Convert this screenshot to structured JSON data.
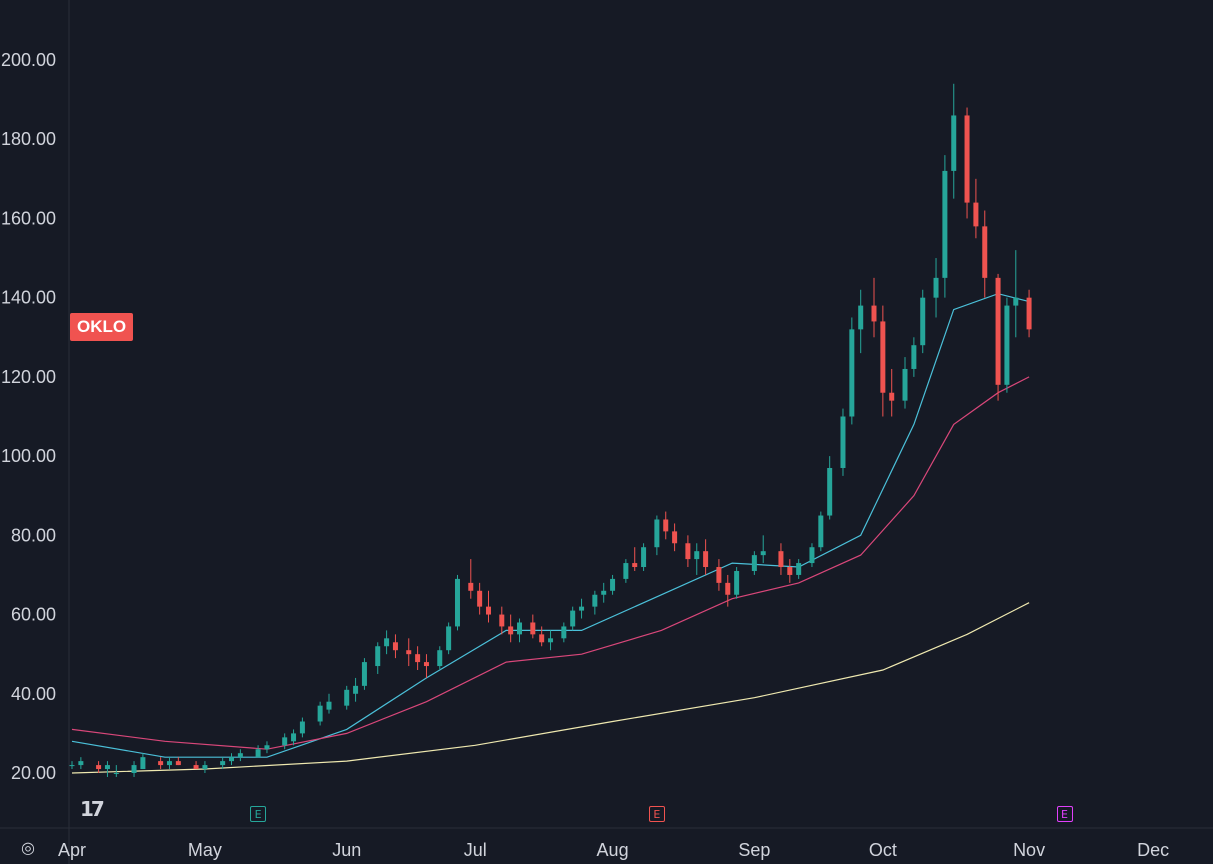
{
  "symbol": {
    "label": "OKLO",
    "color": "#f05350"
  },
  "logo": "17",
  "events": [
    {
      "label": "E",
      "kind": "earnings-positive",
      "date": "2025-05-13"
    },
    {
      "label": "E",
      "kind": "earnings-negative",
      "date": "2025-08-11"
    },
    {
      "label": "E",
      "kind": "earnings-upcoming",
      "date": "2025-11-11"
    }
  ],
  "chart_data": {
    "type": "candlestick",
    "y_axis": {
      "ticks": [
        "20.00",
        "40.00",
        "60.00",
        "80.00",
        "100.00",
        "120.00",
        "140.00",
        "160.00",
        "180.00",
        "200.00"
      ],
      "range": [
        16,
        210
      ]
    },
    "x_axis": {
      "ticks": [
        "Apr",
        "May",
        "Jun",
        "Jul",
        "Aug",
        "Sep",
        "Oct",
        "Nov",
        "Dec"
      ],
      "tick_dates": [
        "2025-04-01",
        "2025-05-01",
        "2025-06-02",
        "2025-07-01",
        "2025-08-01",
        "2025-09-02",
        "2025-10-01",
        "2025-11-03",
        "2025-12-01"
      ],
      "range": [
        "2025-04-01",
        "2025-12-03"
      ]
    },
    "colors": {
      "up": "#26a69a",
      "down": "#ef5350",
      "ema_fast": "#4bc0d9",
      "ema_slow": "#d9477a",
      "ma_long": "#efe9b0",
      "grid": "#2a2e39"
    },
    "candles": [
      [
        "2025-04-01",
        22,
        23,
        21,
        22
      ],
      [
        "2025-04-03",
        22,
        24,
        21,
        23
      ],
      [
        "2025-04-07",
        22,
        23,
        20,
        21
      ],
      [
        "2025-04-09",
        21,
        23,
        19,
        22
      ],
      [
        "2025-04-11",
        20,
        22,
        19,
        20
      ],
      [
        "2025-04-15",
        20,
        23,
        19,
        22
      ],
      [
        "2025-04-17",
        21,
        25,
        21,
        24
      ],
      [
        "2025-04-21",
        23,
        24,
        21,
        22
      ],
      [
        "2025-04-23",
        22,
        24,
        21,
        23
      ],
      [
        "2025-04-25",
        23,
        24,
        22,
        22
      ],
      [
        "2025-04-29",
        22,
        23,
        21,
        21
      ],
      [
        "2025-05-01",
        21,
        23,
        20,
        22
      ],
      [
        "2025-05-05",
        22,
        24,
        21,
        23
      ],
      [
        "2025-05-07",
        23,
        25,
        22,
        24
      ],
      [
        "2025-05-09",
        24,
        26,
        23,
        25
      ],
      [
        "2025-05-13",
        24,
        27,
        24,
        26
      ],
      [
        "2025-05-15",
        26,
        28,
        25,
        27
      ],
      [
        "2025-05-19",
        27,
        30,
        26,
        29
      ],
      [
        "2025-05-21",
        28,
        31,
        27,
        30
      ],
      [
        "2025-05-23",
        30,
        34,
        29,
        33
      ],
      [
        "2025-05-27",
        33,
        38,
        32,
        37
      ],
      [
        "2025-05-29",
        36,
        40,
        35,
        38
      ],
      [
        "2025-06-02",
        37,
        42,
        36,
        41
      ],
      [
        "2025-06-04",
        40,
        44,
        38,
        42
      ],
      [
        "2025-06-06",
        42,
        49,
        41,
        48
      ],
      [
        "2025-06-09",
        47,
        53,
        45,
        52
      ],
      [
        "2025-06-11",
        52,
        56,
        50,
        54
      ],
      [
        "2025-06-13",
        53,
        55,
        49,
        51
      ],
      [
        "2025-06-16",
        51,
        54,
        47,
        50
      ],
      [
        "2025-06-18",
        50,
        52,
        46,
        48
      ],
      [
        "2025-06-20",
        48,
        50,
        44,
        47
      ],
      [
        "2025-06-23",
        47,
        52,
        46,
        51
      ],
      [
        "2025-06-25",
        51,
        58,
        50,
        57
      ],
      [
        "2025-06-27",
        57,
        70,
        56,
        69
      ],
      [
        "2025-06-30",
        68,
        74,
        64,
        66
      ],
      [
        "2025-07-02",
        66,
        68,
        60,
        62
      ],
      [
        "2025-07-04",
        62,
        66,
        58,
        60
      ],
      [
        "2025-07-07",
        60,
        62,
        55,
        57
      ],
      [
        "2025-07-09",
        57,
        60,
        53,
        55
      ],
      [
        "2025-07-11",
        55,
        59,
        53,
        58
      ],
      [
        "2025-07-14",
        58,
        60,
        54,
        55
      ],
      [
        "2025-07-16",
        55,
        57,
        52,
        53
      ],
      [
        "2025-07-18",
        53,
        56,
        51,
        54
      ],
      [
        "2025-07-21",
        54,
        58,
        53,
        57
      ],
      [
        "2025-07-23",
        57,
        62,
        56,
        61
      ],
      [
        "2025-07-25",
        61,
        64,
        59,
        62
      ],
      [
        "2025-07-28",
        62,
        66,
        60,
        65
      ],
      [
        "2025-07-30",
        65,
        68,
        63,
        66
      ],
      [
        "2025-08-01",
        66,
        70,
        65,
        69
      ],
      [
        "2025-08-04",
        69,
        74,
        68,
        73
      ],
      [
        "2025-08-06",
        73,
        77,
        71,
        72
      ],
      [
        "2025-08-08",
        72,
        78,
        71,
        77
      ],
      [
        "2025-08-11",
        77,
        85,
        75,
        84
      ],
      [
        "2025-08-13",
        84,
        86,
        79,
        81
      ],
      [
        "2025-08-15",
        81,
        83,
        76,
        78
      ],
      [
        "2025-08-18",
        78,
        80,
        72,
        74
      ],
      [
        "2025-08-20",
        74,
        78,
        70,
        76
      ],
      [
        "2025-08-22",
        76,
        79,
        70,
        72
      ],
      [
        "2025-08-25",
        72,
        74,
        66,
        68
      ],
      [
        "2025-08-27",
        68,
        70,
        62,
        65
      ],
      [
        "2025-08-29",
        65,
        72,
        64,
        71
      ],
      [
        "2025-09-02",
        71,
        76,
        70,
        75
      ],
      [
        "2025-09-04",
        75,
        80,
        73,
        76
      ],
      [
        "2025-09-08",
        76,
        78,
        70,
        72
      ],
      [
        "2025-09-10",
        72,
        74,
        68,
        70
      ],
      [
        "2025-09-12",
        70,
        74,
        69,
        73
      ],
      [
        "2025-09-15",
        73,
        78,
        72,
        77
      ],
      [
        "2025-09-17",
        77,
        86,
        76,
        85
      ],
      [
        "2025-09-19",
        85,
        100,
        84,
        97
      ],
      [
        "2025-09-22",
        97,
        112,
        95,
        110
      ],
      [
        "2025-09-24",
        110,
        135,
        108,
        132
      ],
      [
        "2025-09-26",
        132,
        142,
        126,
        138
      ],
      [
        "2025-09-29",
        138,
        145,
        130,
        134
      ],
      [
        "2025-10-01",
        134,
        138,
        110,
        116
      ],
      [
        "2025-10-03",
        116,
        122,
        110,
        114
      ],
      [
        "2025-10-06",
        114,
        125,
        112,
        122
      ],
      [
        "2025-10-08",
        122,
        130,
        120,
        128
      ],
      [
        "2025-10-10",
        128,
        142,
        126,
        140
      ],
      [
        "2025-10-13",
        140,
        150,
        135,
        145
      ],
      [
        "2025-10-15",
        145,
        176,
        140,
        172
      ],
      [
        "2025-10-17",
        172,
        194,
        165,
        186
      ],
      [
        "2025-10-20",
        186,
        188,
        160,
        164
      ],
      [
        "2025-10-22",
        164,
        170,
        155,
        158
      ],
      [
        "2025-10-24",
        158,
        162,
        140,
        145
      ],
      [
        "2025-10-27",
        145,
        146,
        114,
        118
      ],
      [
        "2025-10-29",
        118,
        140,
        116,
        138
      ],
      [
        "2025-10-31",
        138,
        152,
        130,
        140
      ],
      [
        "2025-11-03",
        140,
        142,
        130,
        132
      ]
    ],
    "series": [
      {
        "name": "",
        "color": "#4bc0d9",
        "x": [
          "2025-04-01",
          "2025-04-22",
          "2025-05-15",
          "2025-06-02",
          "2025-06-20",
          "2025-07-08",
          "2025-07-25",
          "2025-08-12",
          "2025-08-28",
          "2025-09-12",
          "2025-09-26",
          "2025-10-08",
          "2025-10-17",
          "2025-10-27",
          "2025-11-03"
        ],
        "values": [
          28,
          24,
          24,
          31,
          44,
          56,
          56,
          65,
          73,
          72,
          80,
          108,
          137,
          141,
          139
        ]
      },
      {
        "name": "",
        "color": "#d9477a",
        "x": [
          "2025-04-01",
          "2025-04-22",
          "2025-05-15",
          "2025-06-02",
          "2025-06-20",
          "2025-07-08",
          "2025-07-25",
          "2025-08-12",
          "2025-08-28",
          "2025-09-12",
          "2025-09-26",
          "2025-10-08",
          "2025-10-17",
          "2025-10-27",
          "2025-11-03"
        ],
        "values": [
          31,
          28,
          26,
          30,
          38,
          48,
          50,
          56,
          64,
          68,
          75,
          90,
          108,
          116,
          120
        ]
      },
      {
        "name": "",
        "color": "#efe9b0",
        "x": [
          "2025-04-01",
          "2025-05-01",
          "2025-06-02",
          "2025-07-01",
          "2025-08-01",
          "2025-09-02",
          "2025-10-01",
          "2025-10-20",
          "2025-11-03"
        ],
        "values": [
          20,
          21,
          23,
          27,
          33,
          39,
          46,
          55,
          63
        ]
      }
    ]
  }
}
